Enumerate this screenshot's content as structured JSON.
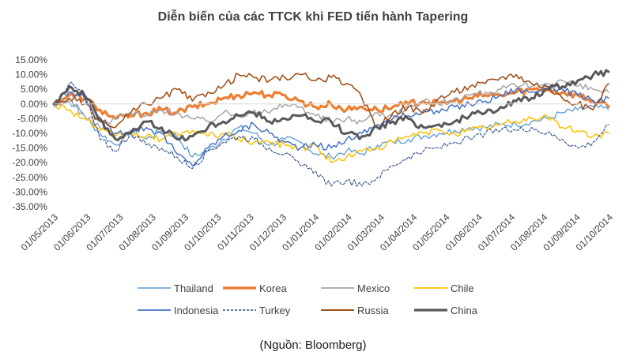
{
  "chart_data": {
    "type": "line",
    "title": "Diễn biến của các TTCK khi FED tiến hành Tapering",
    "source": "(Nguồn: Bloomberg)",
    "xlabel": "",
    "ylabel": "",
    "ylim": [
      -35,
      15
    ],
    "y_ticks": [
      15,
      10,
      5,
      0,
      -5,
      -10,
      -15,
      -20,
      -25,
      -30,
      -35
    ],
    "y_tick_labels": [
      "15.00%",
      "10.00%",
      "5.00%",
      "0.00%",
      "-5.00%",
      "-10.00%",
      "-15.00%",
      "-20.00%",
      "-25.00%",
      "-30.00%",
      "-35.00%"
    ],
    "x_tick_labels": [
      "01/05/2013",
      "01/06/2013",
      "01/07/2013",
      "01/08/2013",
      "01/09/2013",
      "01/10/2013",
      "01/11/2013",
      "01/12/2013",
      "01/01/2014",
      "01/02/2014",
      "01/03/2014",
      "01/04/2014",
      "01/05/2014",
      "01/06/2014",
      "01/07/2014",
      "01/08/2014",
      "01/09/2014",
      "01/10/2014"
    ],
    "x_range": [
      0,
      18
    ],
    "legend_position": "bottom",
    "series": [
      {
        "name": "Thailand",
        "color": "#5b9bd5",
        "width": 1.3,
        "dash": "",
        "x": [
          0,
          0.5,
          1,
          1.5,
          2,
          2.5,
          3,
          3.5,
          4,
          4.5,
          5,
          5.5,
          6,
          6.5,
          7,
          7.5,
          8,
          8.5,
          9,
          9.5,
          10,
          10.5,
          11,
          11.5,
          12,
          12.5,
          13,
          13.5,
          14,
          14.5,
          15,
          15.5,
          16,
          16.5,
          17,
          17.5,
          18
        ],
        "y": [
          -1,
          2,
          -4,
          -10,
          -14,
          -9,
          -12,
          -9,
          -11,
          -18,
          -16,
          -12,
          -8,
          -10,
          -14,
          -12,
          -13,
          -17,
          -18,
          -16,
          -17,
          -14,
          -13,
          -12,
          -11,
          -10,
          -9,
          -8,
          -8,
          -7,
          -7,
          -6,
          -5,
          -3,
          -2,
          -1,
          -2
        ]
      },
      {
        "name": "Korea",
        "color": "#ed7d31",
        "width": 3.2,
        "dash": "",
        "x": [
          0,
          0.5,
          1,
          1.5,
          2,
          2.5,
          3,
          3.5,
          4,
          4.5,
          5,
          5.5,
          6,
          6.5,
          7,
          7.5,
          8,
          8.5,
          9,
          9.5,
          10,
          10.5,
          11,
          11.5,
          12,
          12.5,
          13,
          13.5,
          14,
          14.5,
          15,
          15.5,
          16,
          16.5,
          17,
          17.5,
          18
        ],
        "y": [
          0,
          3,
          2,
          -2,
          -5,
          -4,
          -3,
          -2,
          -3,
          -1,
          0,
          2,
          3,
          4,
          3,
          3,
          1,
          -1,
          0,
          -2,
          -1,
          -2,
          -1,
          0,
          1,
          0,
          1,
          2,
          3,
          3,
          4,
          5,
          5,
          4,
          3,
          1,
          -1
        ]
      },
      {
        "name": "Mexico",
        "color": "#a5a5a5",
        "width": 1.5,
        "dash": "",
        "x": [
          0,
          0.5,
          1,
          1.5,
          2,
          2.5,
          3,
          3.5,
          4,
          4.5,
          5,
          5.5,
          6,
          6.5,
          7,
          7.5,
          8,
          8.5,
          9,
          9.5,
          10,
          10.5,
          11,
          11.5,
          12,
          12.5,
          13,
          13.5,
          14,
          14.5,
          15,
          15.5,
          16,
          16.5,
          17,
          17.5,
          18
        ],
        "y": [
          0,
          1,
          -4,
          -8,
          -5,
          -3,
          -4,
          -2,
          -3,
          -5,
          -6,
          -3,
          -4,
          -2,
          -3,
          0,
          -1,
          -4,
          -6,
          -5,
          -6,
          -3,
          -4,
          -1,
          1,
          0,
          2,
          3,
          4,
          5,
          6,
          6,
          7,
          8,
          6,
          5,
          4
        ]
      },
      {
        "name": "Chile",
        "color": "#ffc000",
        "width": 1.5,
        "dash": "",
        "x": [
          0,
          0.5,
          1,
          1.5,
          2,
          2.5,
          3,
          3.5,
          4,
          4.5,
          5,
          5.5,
          6,
          6.5,
          7,
          7.5,
          8,
          8.5,
          9,
          9.5,
          10,
          10.5,
          11,
          11.5,
          12,
          12.5,
          13,
          13.5,
          14,
          14.5,
          15,
          15.5,
          16,
          16.5,
          17,
          17.5,
          18
        ],
        "y": [
          0,
          -2,
          -5,
          -9,
          -11,
          -10,
          -11,
          -12,
          -10,
          -9,
          -11,
          -10,
          -12,
          -13,
          -13,
          -14,
          -15,
          -14,
          -20,
          -18,
          -16,
          -15,
          -13,
          -11,
          -10,
          -9,
          -10,
          -9,
          -8,
          -7,
          -6,
          -5,
          -4,
          -8,
          -9,
          -11,
          -10
        ]
      },
      {
        "name": "Indonesia",
        "color": "#4472c4",
        "width": 1.5,
        "dash": "",
        "x": [
          0,
          0.5,
          1,
          1.5,
          2,
          2.5,
          3,
          3.5,
          4,
          4.5,
          5,
          5.5,
          6,
          6.5,
          7,
          7.5,
          8,
          8.5,
          9,
          9.5,
          10,
          10.5,
          11,
          11.5,
          12,
          12.5,
          13,
          13.5,
          14,
          14.5,
          15,
          15.5,
          16,
          16.5,
          17,
          17.5,
          18
        ],
        "y": [
          0,
          4,
          2,
          -6,
          -10,
          -9,
          -8,
          -10,
          -17,
          -21,
          -15,
          -11,
          -9,
          -7,
          -10,
          -13,
          -15,
          -14,
          -15,
          -12,
          -10,
          -7,
          -5,
          -4,
          -2,
          -3,
          -1,
          0,
          1,
          3,
          5,
          4,
          6,
          5,
          3,
          1,
          2
        ]
      },
      {
        "name": "Turkey",
        "color": "#2e4a8c",
        "width": 1.1,
        "dash": "3,2",
        "x": [
          0,
          0.5,
          1,
          1.5,
          2,
          2.5,
          3,
          3.5,
          4,
          4.5,
          5,
          5.5,
          6,
          6.5,
          7,
          7.5,
          8,
          8.5,
          9,
          9.5,
          10,
          10.5,
          11,
          11.5,
          12,
          12.5,
          13,
          13.5,
          14,
          14.5,
          15,
          15.5,
          16,
          16.5,
          17,
          17.5,
          18
        ],
        "y": [
          0,
          7,
          3,
          -12,
          -16,
          -10,
          -14,
          -15,
          -18,
          -22,
          -16,
          -13,
          -11,
          -12,
          -15,
          -17,
          -21,
          -23,
          -28,
          -26,
          -28,
          -25,
          -21,
          -18,
          -16,
          -15,
          -13,
          -12,
          -10,
          -9,
          -9,
          -8,
          -10,
          -12,
          -15,
          -13,
          -7
        ]
      },
      {
        "name": "Russia",
        "color": "#a0521a",
        "width": 1.6,
        "dash": "",
        "x": [
          0,
          0.5,
          1,
          1.5,
          2,
          2.5,
          3,
          3.5,
          4,
          4.5,
          5,
          5.5,
          6,
          6.5,
          7,
          7.5,
          8,
          8.5,
          9,
          9.5,
          10,
          10.5,
          11,
          11.5,
          12,
          12.5,
          13,
          13.5,
          14,
          14.5,
          15,
          15.5,
          16,
          16.5,
          17,
          17.5,
          18
        ],
        "y": [
          0,
          2,
          0,
          -6,
          -8,
          -3,
          0,
          2,
          5,
          1,
          4,
          6,
          10,
          9,
          8,
          9,
          10,
          8,
          9,
          7,
          2,
          -8,
          -3,
          -1,
          -3,
          2,
          4,
          6,
          7,
          9,
          10,
          7,
          6,
          2,
          0,
          -2,
          7
        ]
      },
      {
        "name": "China",
        "color": "#595959",
        "width": 3.0,
        "dash": "",
        "x": [
          0,
          0.5,
          1,
          1.5,
          2,
          2.5,
          3,
          3.5,
          4,
          4.5,
          5,
          5.5,
          6,
          6.5,
          7,
          7.5,
          8,
          8.5,
          9,
          9.5,
          10,
          10.5,
          11,
          11.5,
          12,
          12.5,
          13,
          13.5,
          14,
          14.5,
          15,
          15.5,
          16,
          16.5,
          17,
          17.5,
          18
        ],
        "y": [
          0,
          6,
          3,
          -5,
          -12,
          -10,
          -6,
          -8,
          -12,
          -11,
          -8,
          -6,
          -4,
          -3,
          -6,
          -5,
          -4,
          -6,
          -6,
          -10,
          -11,
          -8,
          -6,
          -5,
          -8,
          -7,
          -6,
          -4,
          -3,
          -1,
          1,
          2,
          5,
          6,
          8,
          10,
          11
        ]
      }
    ]
  }
}
